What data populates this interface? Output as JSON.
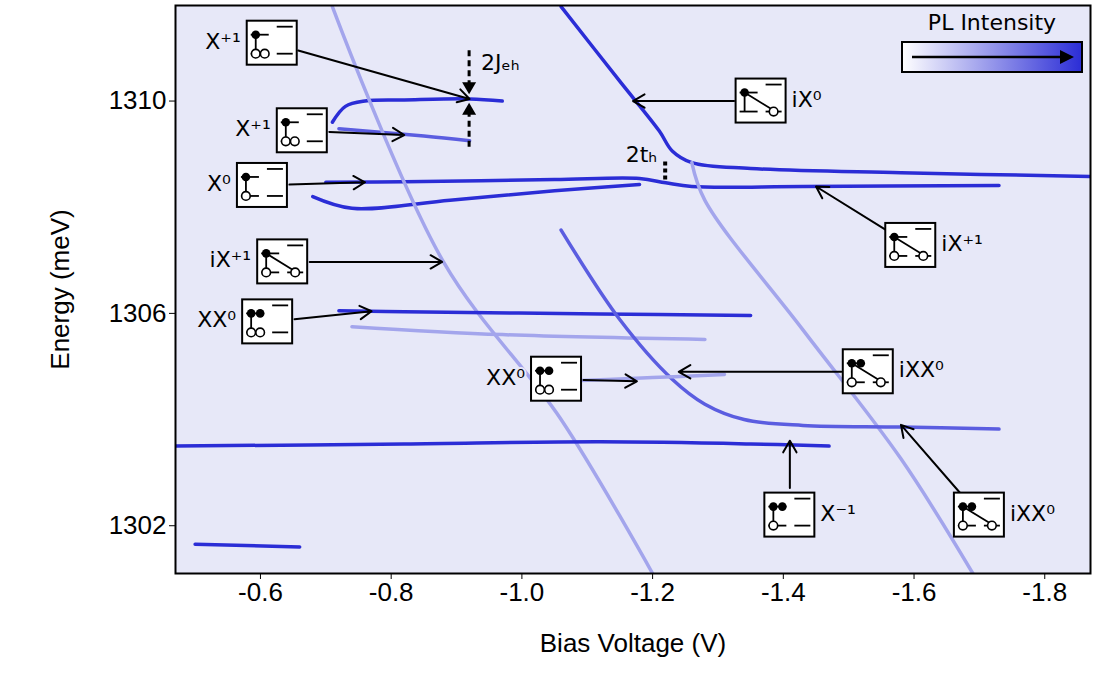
{
  "chart_data": {
    "type": "line",
    "x_label": "Bias Voltage (V)",
    "y_label": "Energy (meV)",
    "xlim": [
      -0.47,
      -1.87
    ],
    "ylim": [
      1301.1,
      1311.8
    ],
    "xticks": [
      {
        "value": -0.6,
        "label": "-0.6"
      },
      {
        "value": -0.8,
        "label": "-0.8"
      },
      {
        "value": -1.0,
        "label": "-1.0"
      },
      {
        "value": -1.2,
        "label": "-1.2"
      },
      {
        "value": -1.4,
        "label": "-1.4"
      },
      {
        "value": -1.6,
        "label": "-1.6"
      },
      {
        "value": -1.8,
        "label": "-1.8"
      }
    ],
    "yticks": [
      1302,
      1306,
      1310
    ],
    "series": [
      {
        "color": "#2b2dd6",
        "x": [
          -0.71,
          -0.73,
          -0.76,
          -0.82,
          -0.92,
          -0.97
        ],
        "values": [
          1309.6,
          1309.9,
          1310.0,
          1310.02,
          1310.04,
          1310.0
        ]
      },
      {
        "color": "#5b5de0",
        "x": [
          -0.72,
          -0.85,
          -0.92
        ],
        "values": [
          1309.48,
          1309.34,
          1309.25
        ]
      },
      {
        "color": "#2b2dd6",
        "x": [
          -0.7,
          -0.82,
          -1.05,
          -1.18,
          -1.22,
          -1.26,
          -1.43,
          -1.73
        ],
        "values": [
          1308.47,
          1308.48,
          1308.52,
          1308.54,
          1308.46,
          1308.39,
          1308.39,
          1308.41
        ]
      },
      {
        "color": "#2b2dd6",
        "x": [
          -0.68,
          -0.74,
          -0.89,
          -1.05,
          -1.18
        ],
        "values": [
          1308.2,
          1307.98,
          1308.13,
          1308.31,
          1308.43
        ]
      },
      {
        "color": "#2b2dd6",
        "x": [
          -1.06,
          -1.15,
          -1.21,
          -1.23,
          -1.26,
          -1.35,
          -1.58,
          -1.87
        ],
        "values": [
          1311.78,
          1310.37,
          1309.44,
          1309.06,
          1308.84,
          1308.73,
          1308.65,
          1308.58
        ]
      },
      {
        "color": "#a3a5ec",
        "x": [
          -1.26,
          -1.28,
          -1.43,
          -1.58,
          -1.69
        ],
        "values": [
          1308.84,
          1308.13,
          1305.69,
          1303.26,
          1301.1
        ]
      },
      {
        "color": "#a3a5ec",
        "x": [
          -0.71,
          -0.88,
          -1.06,
          -1.2
        ],
        "values": [
          1311.78,
          1306.97,
          1304.0,
          1301.1
        ]
      },
      {
        "color": "#2b2dd6",
        "x": [
          -0.72,
          -0.82,
          -1.12,
          -1.35
        ],
        "values": [
          1306.05,
          1306.03,
          1305.99,
          1305.96
        ]
      },
      {
        "color": "#a3a5ec",
        "x": [
          -0.74,
          -0.97,
          -1.28
        ],
        "values": [
          1305.75,
          1305.6,
          1305.51
        ]
      },
      {
        "color": "#5b5de0",
        "x": [
          -1.06,
          -1.15,
          -1.23,
          -1.28,
          -1.34,
          -1.43,
          -1.58,
          -1.73
        ],
        "values": [
          1307.57,
          1305.88,
          1304.76,
          1304.29,
          1304.0,
          1303.89,
          1303.86,
          1303.82
        ]
      },
      {
        "color": "#2b2dd6",
        "x": [
          -0.47,
          -0.82,
          -1.12,
          -1.35,
          -1.47
        ],
        "values": [
          1303.5,
          1303.54,
          1303.58,
          1303.54,
          1303.5
        ]
      },
      {
        "color": "#a3a5ec",
        "x": [
          -1.06,
          -1.2,
          -1.31
        ],
        "values": [
          1304.72,
          1304.79,
          1304.85
        ]
      },
      {
        "color": "#2b2dd6",
        "x": [
          -0.5,
          -0.66
        ],
        "values": [
          1301.65,
          1301.6
        ]
      }
    ],
    "annotations": [
      {
        "text": "X⁺¹",
        "x": -0.618,
        "y": 1311.09,
        "arrow_x": -0.92,
        "arrow_y": 1310.04
      },
      {
        "text": "X⁺¹",
        "x": -0.664,
        "y": 1309.44,
        "arrow_x": -0.82,
        "arrow_y": 1309.36
      },
      {
        "text": "X⁰",
        "x": -0.603,
        "y": 1308.41,
        "arrow_x": -0.76,
        "arrow_y": 1308.47
      },
      {
        "text": "iX⁺¹",
        "x": -0.634,
        "y": 1306.97,
        "arrow_x": -0.878,
        "arrow_y": 1306.97
      },
      {
        "text": "XX⁰",
        "x": -0.611,
        "y": 1305.84,
        "arrow_x": -0.77,
        "arrow_y": 1306.04
      },
      {
        "text": "XX⁰",
        "x": -1.053,
        "y": 1304.76,
        "arrow_x": -1.176,
        "arrow_y": 1304.72
      },
      {
        "text": "iXX⁰",
        "x": -1.53,
        "y": 1304.9,
        "arrow_x": -1.24,
        "arrow_y": 1304.9
      },
      {
        "text": "iX⁰",
        "x": -1.366,
        "y": 1310.0,
        "arrow_x": -1.17,
        "arrow_y": 1310.0
      },
      {
        "text": "iX⁺¹",
        "x": -1.595,
        "y": 1307.28,
        "arrow_x": -1.45,
        "arrow_y": 1308.39
      },
      {
        "text": "X⁻¹",
        "x": -1.41,
        "y": 1302.2,
        "arrow_x": -1.41,
        "arrow_y": 1303.6
      },
      {
        "text": "iXX⁰",
        "x": -1.7,
        "y": 1302.2,
        "arrow_x": -1.58,
        "arrow_y": 1303.9
      }
    ],
    "intervals": [
      {
        "label": "2Jₑₕ",
        "x": -0.92,
        "y1": 1310.12,
        "y2": 1309.96,
        "marker": "arrow"
      },
      {
        "label": "2tₕ",
        "x": -1.22,
        "y1": 1308.85,
        "y2": 1308.5,
        "marker": "line"
      }
    ],
    "colorbar": {
      "label": "PL Intensity"
    }
  }
}
